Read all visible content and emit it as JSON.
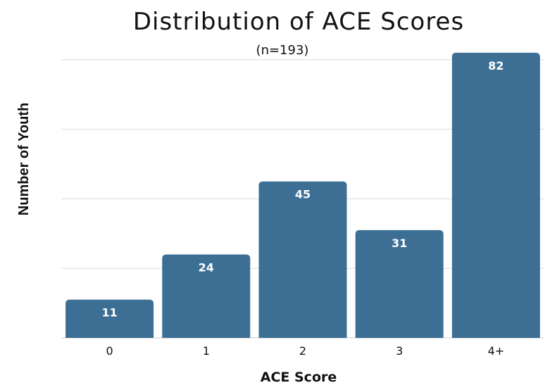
{
  "chart_data": {
    "type": "bar",
    "title": "Distribution of ACE Scores",
    "subtitle": "(n=193)",
    "xlabel": "ACE Score",
    "ylabel": "Number of Youth",
    "categories": [
      "0",
      "1",
      "2",
      "3",
      "4+"
    ],
    "values": [
      11,
      24,
      45,
      31,
      82
    ],
    "ylim": [
      0,
      80
    ],
    "yticks": [
      0,
      20,
      40,
      60,
      80
    ],
    "grid": true,
    "legend": "none",
    "bar_color": "#3d6f95"
  }
}
